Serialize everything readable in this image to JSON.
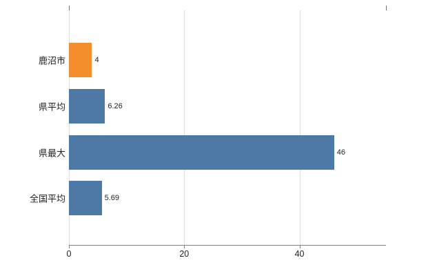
{
  "chart_data": {
    "type": "bar",
    "orientation": "horizontal",
    "title": "",
    "xlabel": "",
    "ylabel": "",
    "categories": [
      "鹿沼市",
      "県平均",
      "県最大",
      "全国平均"
    ],
    "values": [
      4,
      6.26,
      46,
      5.69
    ],
    "value_labels": [
      "4",
      "6.26",
      "46",
      "5.69"
    ],
    "bar_colors": [
      "#f28e2b",
      "#4e79a7",
      "#4e79a7",
      "#4e79a7"
    ],
    "xlim": [
      0,
      55
    ],
    "xticks": [
      0,
      20,
      40
    ],
    "grid": true,
    "legend": false
  },
  "colors": {
    "background": "#ffffff",
    "axis": "#808080",
    "gridline": "#dcdcdc",
    "text": "#222222"
  }
}
